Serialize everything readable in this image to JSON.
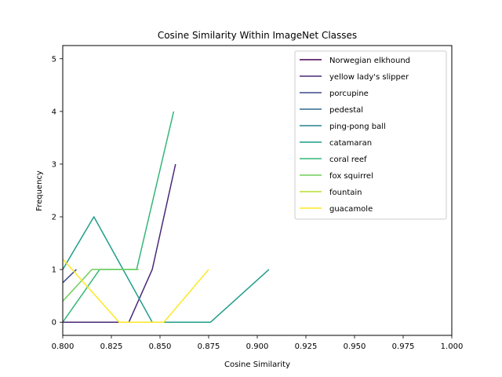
{
  "chart_data": {
    "type": "line",
    "title": "Cosine Similarity Within ImageNet Classes",
    "xlabel": "Cosine Similarity",
    "ylabel": "Frequency",
    "xlim": [
      0.8,
      1.0
    ],
    "ylim": [
      -0.25,
      5.25
    ],
    "xticks": [
      "0.800",
      "0.825",
      "0.850",
      "0.875",
      "0.900",
      "0.925",
      "0.950",
      "0.975",
      "1.000"
    ],
    "yticks": [
      "0",
      "1",
      "2",
      "3",
      "4",
      "5"
    ],
    "grid": false,
    "legend_position": "upper right",
    "series": [
      {
        "name": "Norwegian elkhound",
        "color": "#440154",
        "x": [],
        "y": []
      },
      {
        "name": "yellow lady's slipper",
        "color": "#482878",
        "x": [
          0.8,
          0.834,
          0.846,
          0.858
        ],
        "y": [
          0,
          0,
          1,
          3
        ]
      },
      {
        "name": "porcupine",
        "color": "#3e4989",
        "x": [
          0.8,
          0.807
        ],
        "y": [
          0.75,
          1
        ]
      },
      {
        "name": "pedestal",
        "color": "#31688e",
        "x": [],
        "y": []
      },
      {
        "name": "ping-pong ball",
        "color": "#26828e",
        "x": [],
        "y": []
      },
      {
        "name": "catamaran",
        "color": "#1f9e89",
        "x": [
          0.8,
          0.816,
          0.846,
          0.876,
          0.906
        ],
        "y": [
          1,
          2,
          0,
          0,
          1
        ]
      },
      {
        "name": "coral reef",
        "color": "#35b779",
        "x": [
          0.8,
          0.819,
          0.838,
          0.857
        ],
        "y": [
          0,
          1,
          1,
          4
        ]
      },
      {
        "name": "fox squirrel",
        "color": "#6ece58",
        "x": [
          0.8,
          0.815,
          0.839
        ],
        "y": [
          0.4,
          1,
          1
        ]
      },
      {
        "name": "fountain",
        "color": "#b5de2b",
        "x": [],
        "y": []
      },
      {
        "name": "guacamole",
        "color": "#fde725",
        "x": [
          0.8,
          0.829,
          0.852,
          0.875
        ],
        "y": [
          1.2,
          0,
          0,
          1
        ]
      }
    ]
  }
}
